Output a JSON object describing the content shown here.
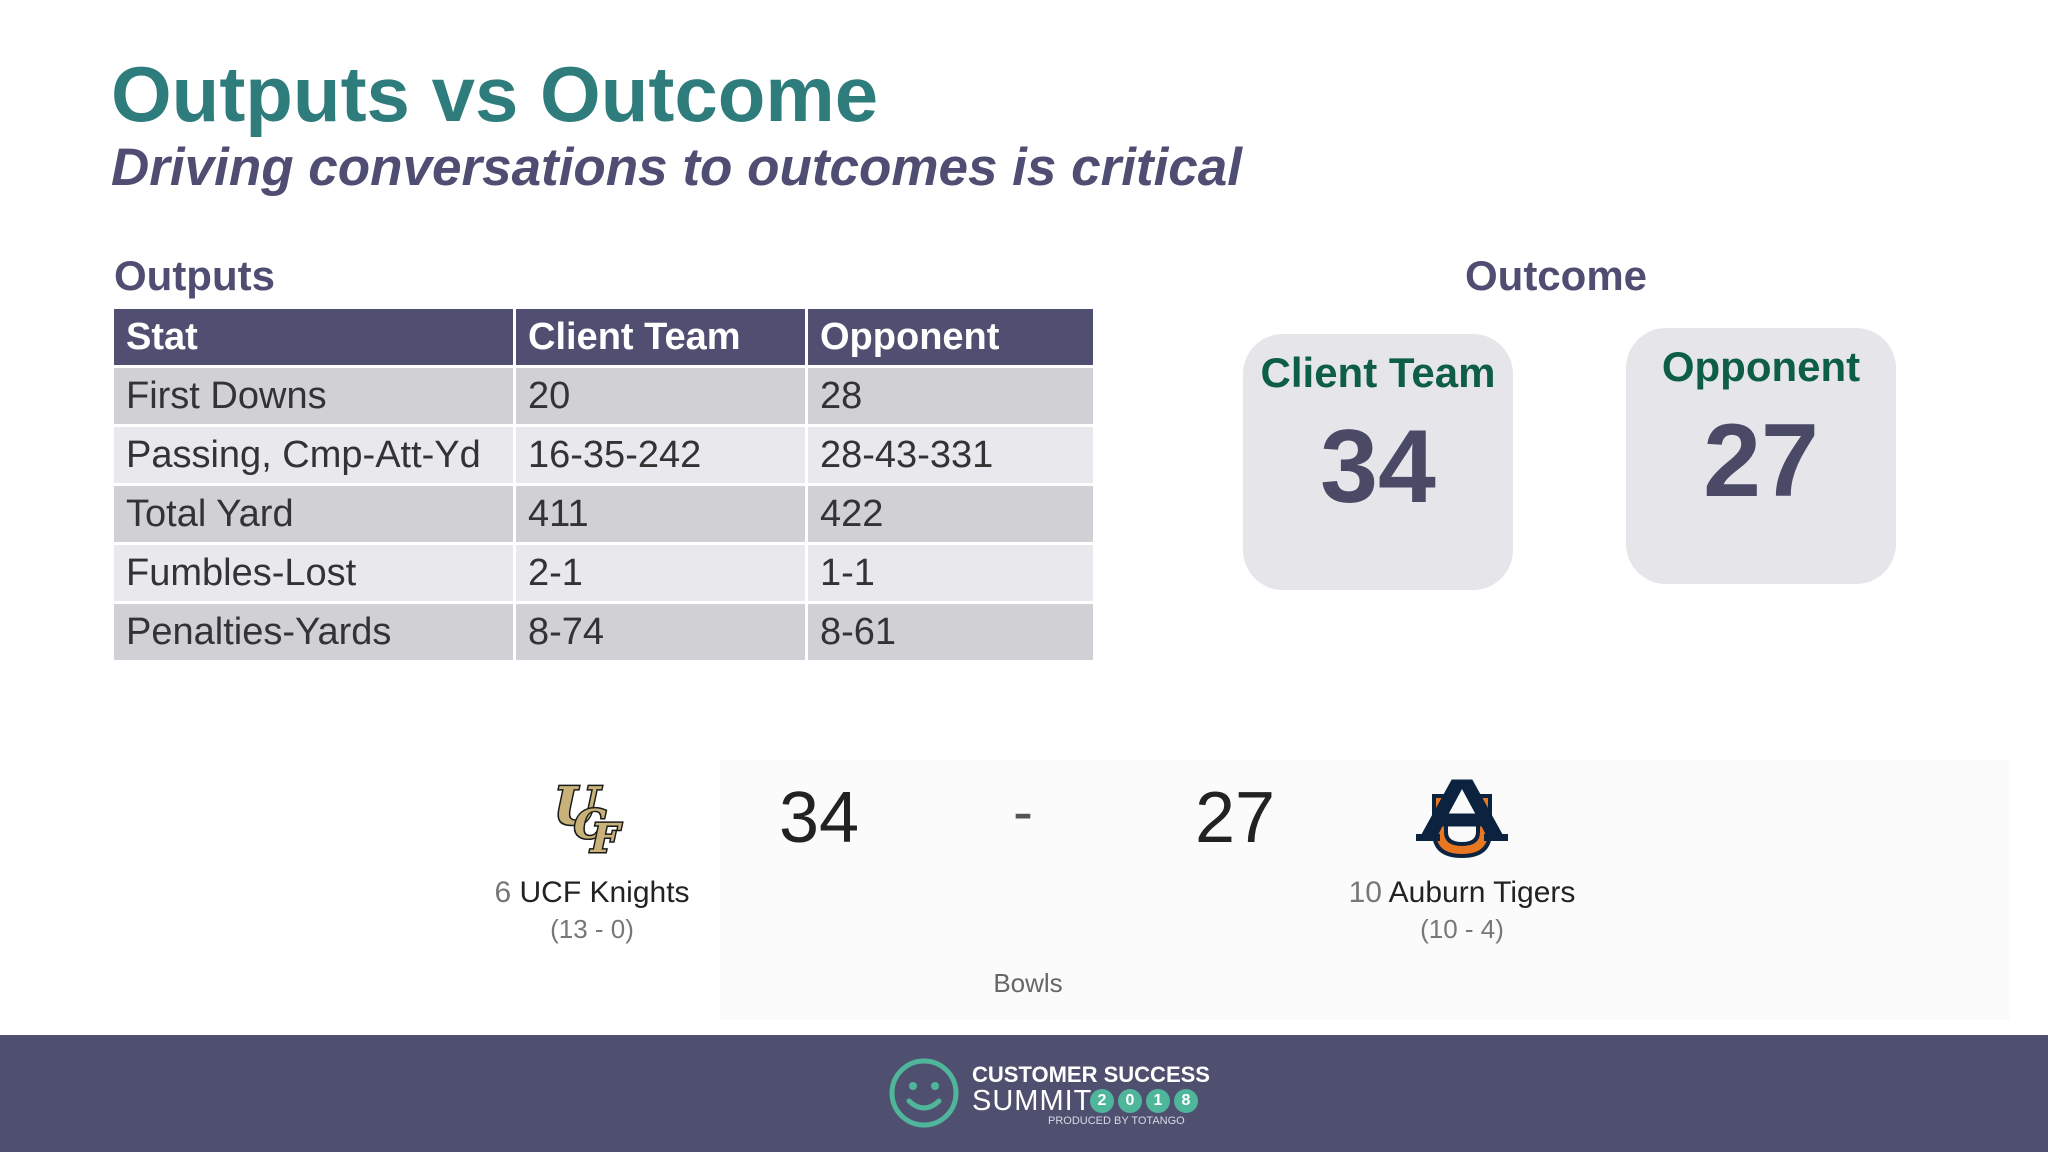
{
  "slide": {
    "title": "Outputs vs Outcome",
    "subtitle": "Driving conversations to outcomes is critical"
  },
  "outputs": {
    "label": "Outputs",
    "columns": [
      "Stat",
      "Client Team",
      "Opponent"
    ],
    "rows": [
      [
        "First Downs",
        "20",
        "28"
      ],
      [
        "Passing, Cmp-Att-Yd",
        "16-35-242",
        "28-43-331"
      ],
      [
        "Total Yard",
        "411",
        "422"
      ],
      [
        "Fumbles-Lost",
        "2-1",
        "1-1"
      ],
      [
        "Penalties-Yards",
        "8-74",
        "8-61"
      ]
    ]
  },
  "outcome": {
    "label": "Outcome",
    "client": {
      "title": "Client Team",
      "score": "34"
    },
    "opponent": {
      "title": "Opponent",
      "score": "27"
    }
  },
  "scoreboard": {
    "home": {
      "rank": "6",
      "name": "UCF Knights",
      "record": "(13 - 0)",
      "score": "34",
      "logo_icon": "ucf-logo-icon"
    },
    "away": {
      "rank": "10",
      "name": "Auburn Tigers",
      "record": "(10 - 4)",
      "score": "27",
      "logo_icon": "auburn-logo-icon"
    },
    "separator": "-",
    "category": "Bowls"
  },
  "footer": {
    "line1": "CUSTOMER SUCCESS",
    "line2": "SUMMIT",
    "year_digits": [
      "2",
      "0",
      "1",
      "8"
    ],
    "line3": "PRODUCED BY TOTANGO",
    "logo_icon": "smiley-icon"
  },
  "colors": {
    "title": "#2e7c7c",
    "subtitle": "#4f4d72",
    "table_header": "#504f72",
    "card_title": "#0d5e44",
    "footer_bg": "#4f5070",
    "accent_green": "#4fb59b"
  }
}
